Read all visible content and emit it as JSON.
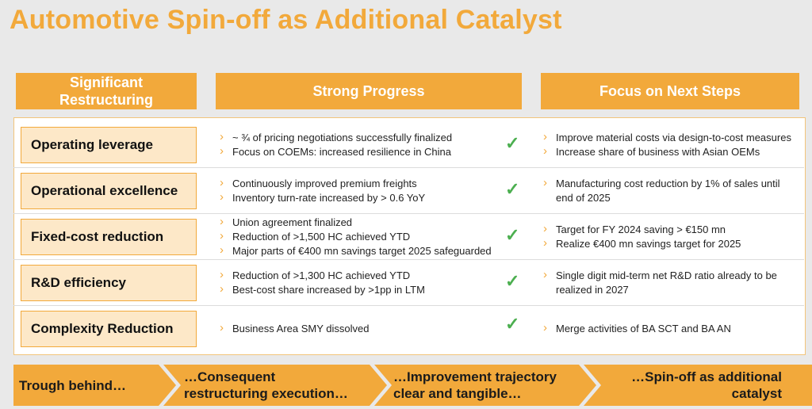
{
  "title": "Automotive Spin-off as Additional Catalyst",
  "headers": [
    "Significant\nRestructuring",
    "Strong Progress",
    "Focus on Next Steps"
  ],
  "rows": [
    {
      "label": "Operating leverage",
      "progress": [
        "~ ¾ of pricing negotiations successfully finalized",
        "Focus on COEMs: increased resilience in China"
      ],
      "next": [
        "Improve material costs via design-to-cost measures",
        "Increase share of business with Asian OEMs"
      ]
    },
    {
      "label": "Operational excellence",
      "progress": [
        "Continuously improved premium freights",
        "Inventory turn-rate increased by > 0.6 YoY"
      ],
      "next": [
        "Manufacturing cost reduction by 1% of sales until end of 2025"
      ]
    },
    {
      "label": "Fixed-cost reduction",
      "progress": [
        "Union agreement finalized",
        "Reduction of >1,500 HC achieved YTD",
        "Major parts of €400 mn savings target 2025 safeguarded"
      ],
      "next": [
        "Target for FY 2024 saving > €150 mn",
        "Realize €400 mn savings target for 2025"
      ]
    },
    {
      "label": "R&D efficiency",
      "progress": [
        "Reduction of >1,300 HC achieved YTD",
        "Best-cost share increased by >1pp in LTM"
      ],
      "next": [
        "Single digit mid-term net R&D ratio already to be realized in 2027"
      ]
    },
    {
      "label": "Complexity Reduction",
      "progress": [
        "Business Area SMY dissolved"
      ],
      "next": [
        "Merge activities of BA SCT and BA AN"
      ]
    }
  ],
  "check_symbol": "✓",
  "journey": [
    "Trough behind…",
    "…Consequent restructuring execution…",
    "…Improvement trajectory clear and tangible…",
    "…Spin-off as additional catalyst"
  ],
  "colors": {
    "accent": "#f2a93b",
    "label_fill": "#fde8c8",
    "check": "#4caf50"
  }
}
